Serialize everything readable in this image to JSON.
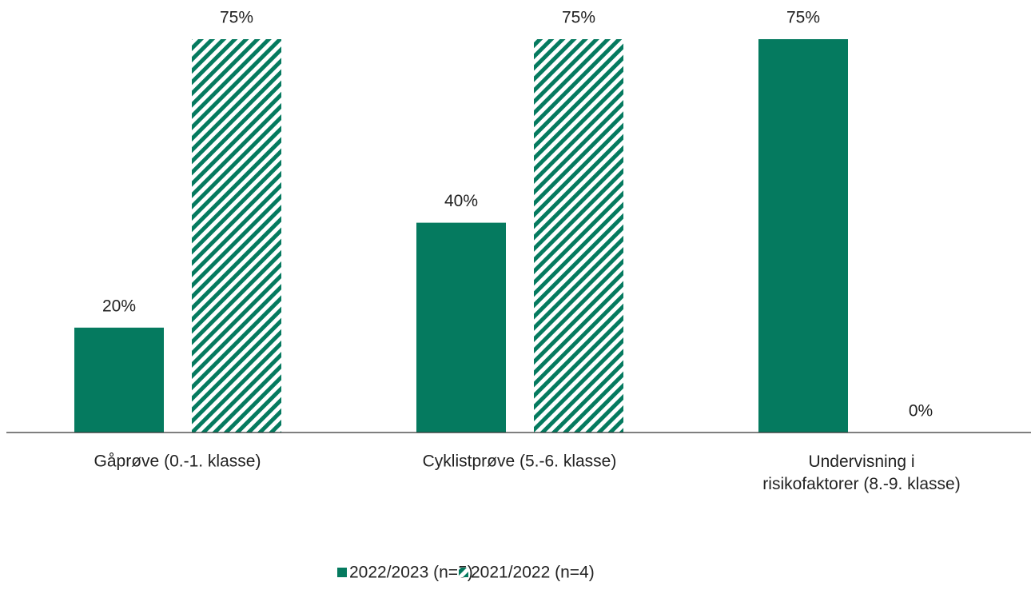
{
  "chart_data": {
    "type": "bar",
    "categories": [
      "Gåprøve (0.-1. klasse)",
      "Cyklistprøve (5.-6. klasse)",
      "Undervisning i\nrisikofaktorer (8.-9. klasse)"
    ],
    "series": [
      {
        "name": "2022/2023 (n=5)",
        "color": "#057a5f",
        "pattern": "solid",
        "values": [
          20,
          40,
          75
        ],
        "value_labels": [
          "20%",
          "40%",
          "75%"
        ]
      },
      {
        "name": "2021/2022 (n=4)",
        "color": "#057a5f",
        "pattern": "hatch",
        "values": [
          75,
          75,
          0
        ],
        "value_labels": [
          "75%",
          "75%",
          "0%"
        ]
      }
    ],
    "ylim": [
      0,
      75
    ],
    "legend": "bottom"
  }
}
